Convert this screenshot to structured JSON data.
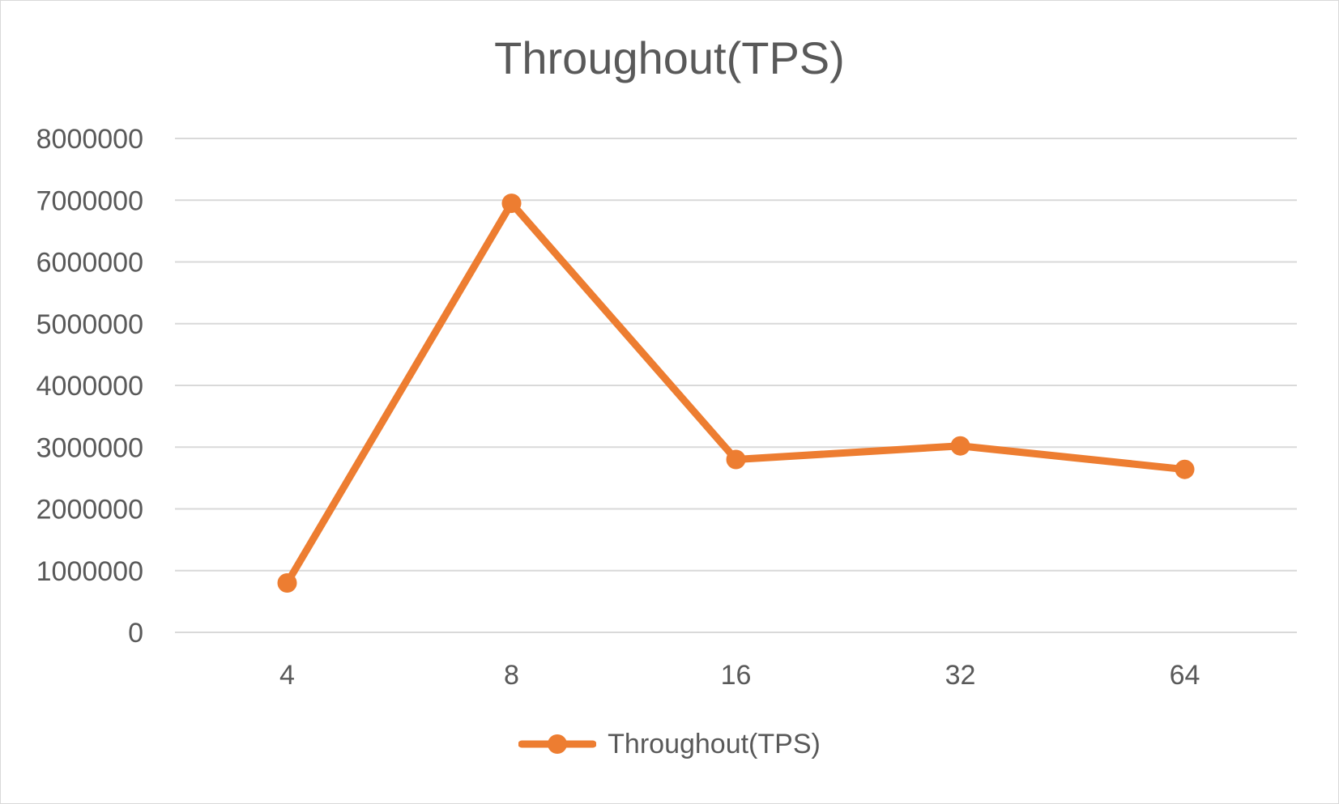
{
  "chart_data": {
    "type": "line",
    "title": "Throughout(TPS)",
    "xlabel": "",
    "ylabel": "",
    "categories": [
      "4",
      "8",
      "16",
      "32",
      "64"
    ],
    "series": [
      {
        "name": "Throughout(TPS)",
        "values": [
          800000,
          6950000,
          2800000,
          3020000,
          2640000
        ],
        "color": "#ED7D31"
      }
    ],
    "ylim": [
      0,
      8000000
    ],
    "yticks": [
      "0",
      "1000000",
      "2000000",
      "3000000",
      "4000000",
      "5000000",
      "6000000",
      "7000000",
      "8000000"
    ],
    "grid": true,
    "legend_position": "bottom",
    "gridline_color": "#d9d9d9",
    "text_color": "#595959"
  }
}
